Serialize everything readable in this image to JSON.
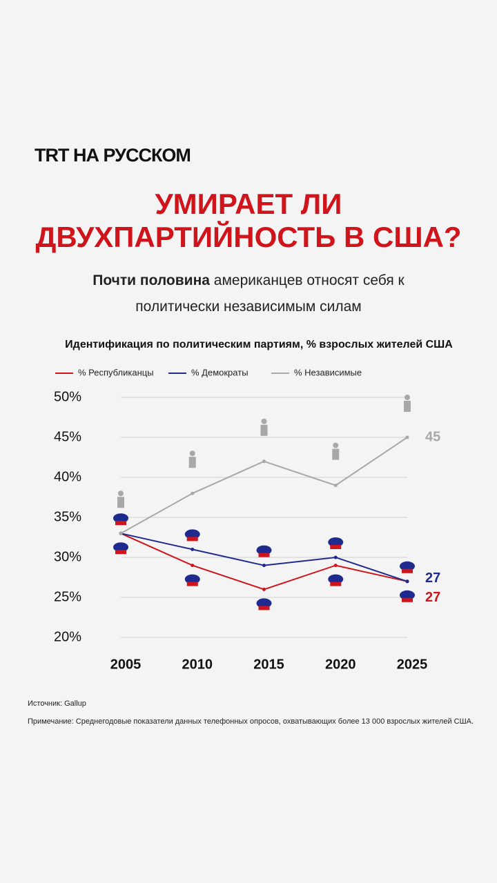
{
  "header": {
    "brand_bold": "TRT",
    "brand_rest": "НА РУССКОМ"
  },
  "title": [
    "УМИРАЕТ ЛИ",
    "ДВУХПАРТИЙНОСТЬ В США?"
  ],
  "subtitle": {
    "bold": "Почти половина",
    "rest": "американцев относят себя к политически независимым силам"
  },
  "chart_data": {
    "type": "line",
    "title": "Идентификация по политическим партиям, % взрослых жителей США",
    "categories": [
      "2005",
      "2010",
      "2015",
      "2020",
      "2025"
    ],
    "series": [
      {
        "name": "% Республиканцы",
        "color": "#d0141b",
        "values": [
          33,
          29,
          26,
          29,
          27
        ]
      },
      {
        "name": "% Демократы",
        "color": "#1f2a8f",
        "values": [
          33,
          31,
          29,
          30,
          27
        ]
      },
      {
        "name": "% Независимые",
        "color": "#a8a8a8",
        "values": [
          33,
          38,
          42,
          39,
          45
        ]
      }
    ],
    "ylim": [
      20,
      50
    ],
    "yticks": [
      {
        "value": 20,
        "label": "20%"
      },
      {
        "value": 25,
        "label": "25%"
      },
      {
        "value": 30,
        "label": "30%"
      },
      {
        "value": 35,
        "label": "35%"
      },
      {
        "value": 40,
        "label": "40%"
      },
      {
        "value": 45,
        "label": "45%"
      },
      {
        "value": 50,
        "label": "50%"
      }
    ],
    "grid": true
  },
  "footer": {
    "source": "Источник: Gallup",
    "note": "Примечание: Среднегодовые показатели данных телефонных опросов, охватывающих более 13 000 взрослых жителей США."
  }
}
